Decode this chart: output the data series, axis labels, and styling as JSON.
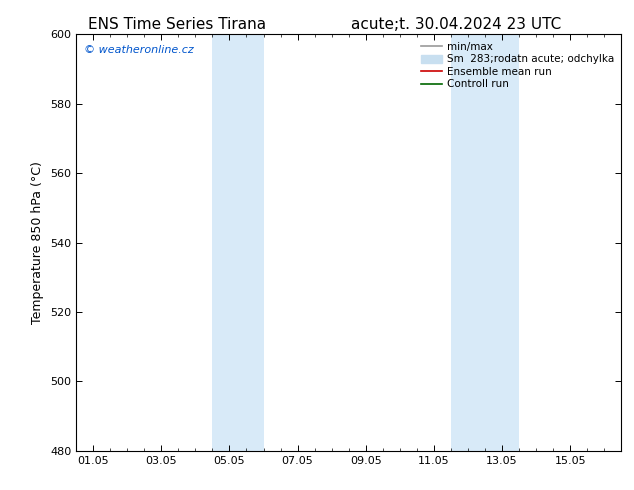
{
  "title_left": "ENS Time Series Tirana",
  "title_right": "acute;t. 30.04.2024 23 UTC",
  "ylabel": "Temperature 850 hPa (°C)",
  "ylim": [
    480,
    600
  ],
  "yticks": [
    480,
    500,
    520,
    540,
    560,
    580,
    600
  ],
  "xtick_labels": [
    "01.05",
    "03.05",
    "05.05",
    "07.05",
    "09.05",
    "11.05",
    "13.05",
    "15.05"
  ],
  "xtick_positions": [
    0,
    2,
    4,
    6,
    8,
    10,
    12,
    14
  ],
  "xlim": [
    -0.5,
    15.5
  ],
  "shade_bands": [
    {
      "x_start": 3.5,
      "x_end": 5.0,
      "color": "#d8eaf8"
    },
    {
      "x_start": 10.5,
      "x_end": 12.5,
      "color": "#d8eaf8"
    }
  ],
  "watermark_text": "© weatheronline.cz",
  "watermark_color": "#0055cc",
  "legend_entries": [
    {
      "label": "min/max",
      "color": "#999999",
      "lw": 1.2,
      "type": "line"
    },
    {
      "label": "Sm  283;rodatn acute; odchylka",
      "color": "#c8dff0",
      "lw": 8,
      "type": "patch"
    },
    {
      "label": "Ensemble mean run",
      "color": "#cc0000",
      "lw": 1.2,
      "type": "line"
    },
    {
      "label": "Controll run",
      "color": "#006600",
      "lw": 1.2,
      "type": "line"
    }
  ],
  "bg_color": "#ffffff",
  "plot_bg_color": "#ffffff",
  "border_color": "#000000",
  "font_size_title": 11,
  "font_size_axis": 9,
  "font_size_tick": 8,
  "font_size_legend": 7.5,
  "font_size_watermark": 8
}
